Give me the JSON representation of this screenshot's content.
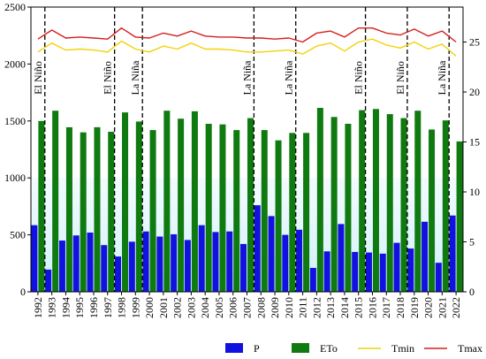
{
  "chart_data": {
    "type": "bar",
    "categories": [
      "1992",
      "1993",
      "1994",
      "1995",
      "1996",
      "1997",
      "1998",
      "1999",
      "2000",
      "2001",
      "2002",
      "2003",
      "2004",
      "2005",
      "2006",
      "2007",
      "2008",
      "2009",
      "2010",
      "2011",
      "2012",
      "2013",
      "2014",
      "2015",
      "2016",
      "2017",
      "2018",
      "2019",
      "2020",
      "2021",
      "2022"
    ],
    "series": [
      {
        "name": "P",
        "kind": "bar",
        "axis": "left",
        "color": "#1212e0",
        "values": [
          585,
          195,
          450,
          495,
          520,
          410,
          310,
          440,
          530,
          485,
          505,
          455,
          585,
          525,
          530,
          420,
          760,
          665,
          500,
          545,
          210,
          355,
          595,
          350,
          345,
          335,
          430,
          380,
          615,
          255,
          670
        ]
      },
      {
        "name": "ETo",
        "kind": "bar",
        "axis": "left",
        "color": "#0f7a0f",
        "values": [
          1500,
          1590,
          1445,
          1400,
          1445,
          1405,
          1575,
          1495,
          1420,
          1590,
          1520,
          1585,
          1475,
          1470,
          1420,
          1525,
          1420,
          1330,
          1395,
          1395,
          1615,
          1535,
          1475,
          1595,
          1605,
          1560,
          1525,
          1590,
          1425,
          1505,
          1320
        ]
      },
      {
        "name": "Tmin",
        "kind": "line",
        "axis": "right",
        "color": "#f2d20a",
        "values": [
          24.0,
          24.9,
          24.2,
          24.3,
          24.2,
          24.0,
          25.1,
          24.3,
          24.0,
          24.6,
          24.3,
          24.9,
          24.3,
          24.3,
          24.2,
          24.0,
          24.0,
          24.1,
          24.2,
          23.8,
          24.6,
          24.9,
          24.1,
          25.0,
          25.3,
          24.7,
          24.4,
          25.0,
          24.3,
          24.8,
          23.6
        ]
      },
      {
        "name": "Tmax",
        "kind": "line",
        "axis": "right",
        "color": "#d42020",
        "values": [
          25.3,
          26.2,
          25.4,
          25.5,
          25.4,
          25.3,
          26.4,
          25.5,
          25.4,
          25.9,
          25.6,
          26.1,
          25.6,
          25.5,
          25.5,
          25.4,
          25.4,
          25.3,
          25.4,
          25.0,
          25.9,
          26.1,
          25.5,
          26.4,
          26.4,
          25.9,
          25.7,
          26.3,
          25.6,
          26.1,
          25.0
        ]
      }
    ],
    "ylim_left": [
      0,
      2500
    ],
    "yticks_left": [
      0,
      500,
      1000,
      1500,
      2000,
      2500
    ],
    "ylim_right": [
      0,
      28.5
    ],
    "yticks_right": [
      0,
      5,
      10,
      15,
      20,
      25
    ],
    "grid": false,
    "legend_position": "bottom",
    "background_fill": {
      "from": 0,
      "to": 1000,
      "color": "#d6f3ff"
    },
    "events": [
      {
        "label": "El Niño",
        "between": [
          "1992",
          "1993"
        ]
      },
      {
        "label": "El Niño",
        "between": [
          "1997",
          "1998"
        ]
      },
      {
        "label": "La Niña",
        "between": [
          "1999",
          "2000"
        ]
      },
      {
        "label": "La Niña",
        "between": [
          "2007",
          "2008"
        ]
      },
      {
        "label": "La Niña",
        "between": [
          "2010",
          "2011"
        ]
      },
      {
        "label": "El Niño",
        "between": [
          "2015",
          "2016"
        ]
      },
      {
        "label": "El Niño",
        "between": [
          "2018",
          "2019"
        ]
      },
      {
        "label": "La Niña",
        "between": [
          "2021",
          "2022"
        ]
      }
    ]
  }
}
